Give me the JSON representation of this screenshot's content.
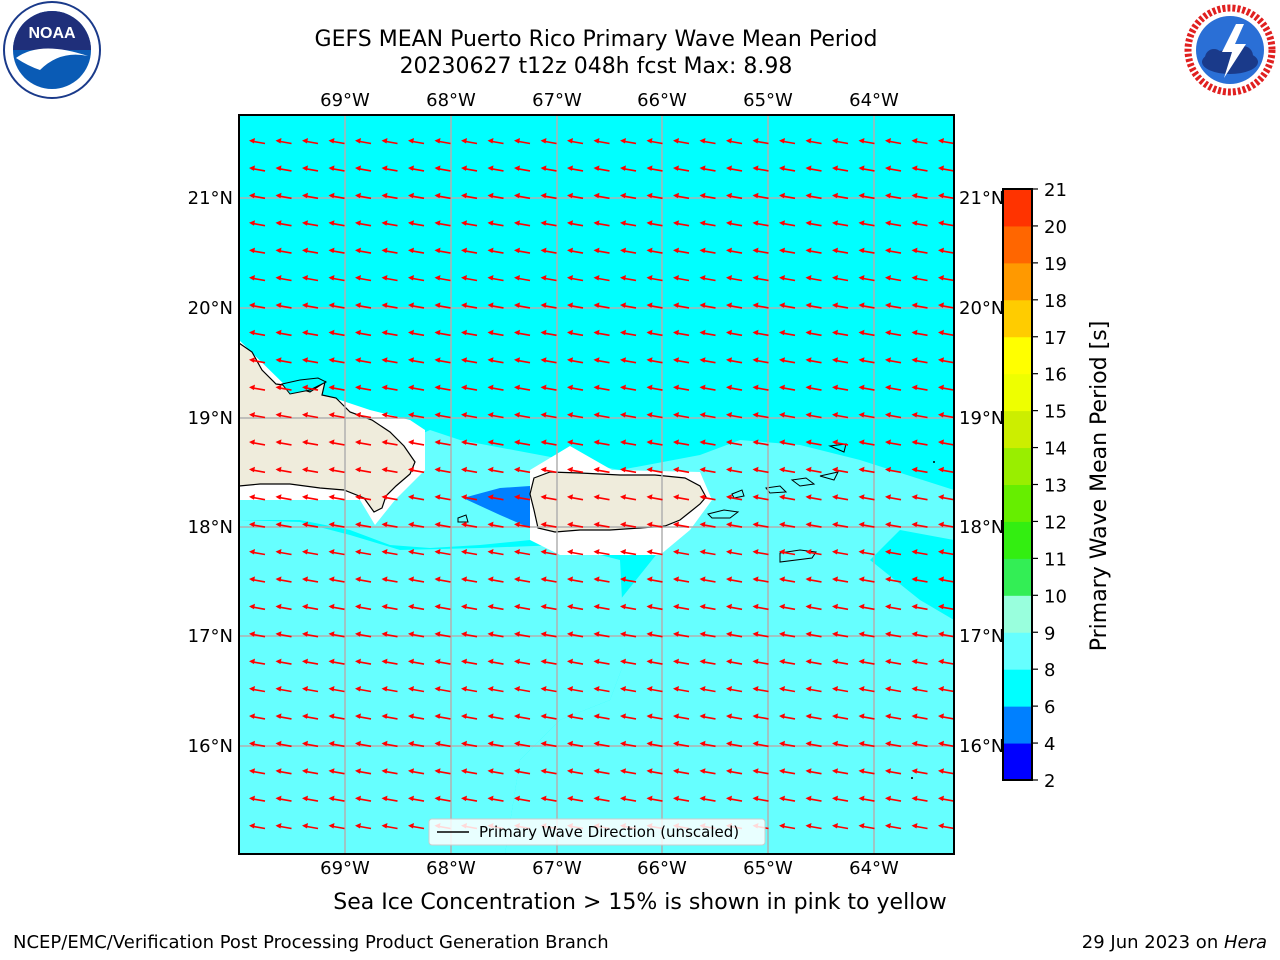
{
  "title": {
    "line1": "GEFS MEAN Puerto Rico Primary Wave Mean Period",
    "line2": "20230627 t12z 048h fcst   Max: 8.98"
  },
  "logos": {
    "noaa_text": "NOAA",
    "noaa_ring": "NATIONAL OCEANIC AND ATMOSPHERIC ADMINISTRATION · U.S. DEPARTMENT OF COMMERCE",
    "nws_ring": "NATIONAL WEATHER SERVICE"
  },
  "map": {
    "lon_ticks": [
      "69°W",
      "68°W",
      "67°W",
      "66°W",
      "65°W",
      "64°W"
    ],
    "lat_ticks": [
      "21°N",
      "20°N",
      "19°N",
      "18°N",
      "17°N",
      "16°N"
    ],
    "legend_label": "Primary Wave Direction (unscaled)",
    "arrow_color": "#ff0000",
    "land_color": "#efecdc",
    "ocean_color": "#00ffff"
  },
  "colorbar": {
    "label": "Primary Wave Mean Period [s]",
    "ticks": [
      "2",
      "4",
      "6",
      "8",
      "9",
      "10",
      "11",
      "12",
      "13",
      "14",
      "15",
      "16",
      "17",
      "18",
      "19",
      "20",
      "21"
    ],
    "colors": [
      "#0000ff",
      "#0080ff",
      "#00ffff",
      "#66ffff",
      "#99ffdd",
      "#33ee55",
      "#33ee11",
      "#66ee00",
      "#99ee00",
      "#ccee00",
      "#eeff00",
      "#ffff00",
      "#ffcc00",
      "#ff9900",
      "#ff6600",
      "#ff3300"
    ]
  },
  "caption": "Sea Ice Concentration > 15% is shown in pink to yellow",
  "footer": {
    "left": "NCEP/EMC/Verification Post Processing Product Generation Branch",
    "right_date": "29 Jun 2023 on ",
    "right_host": "Hera"
  }
}
